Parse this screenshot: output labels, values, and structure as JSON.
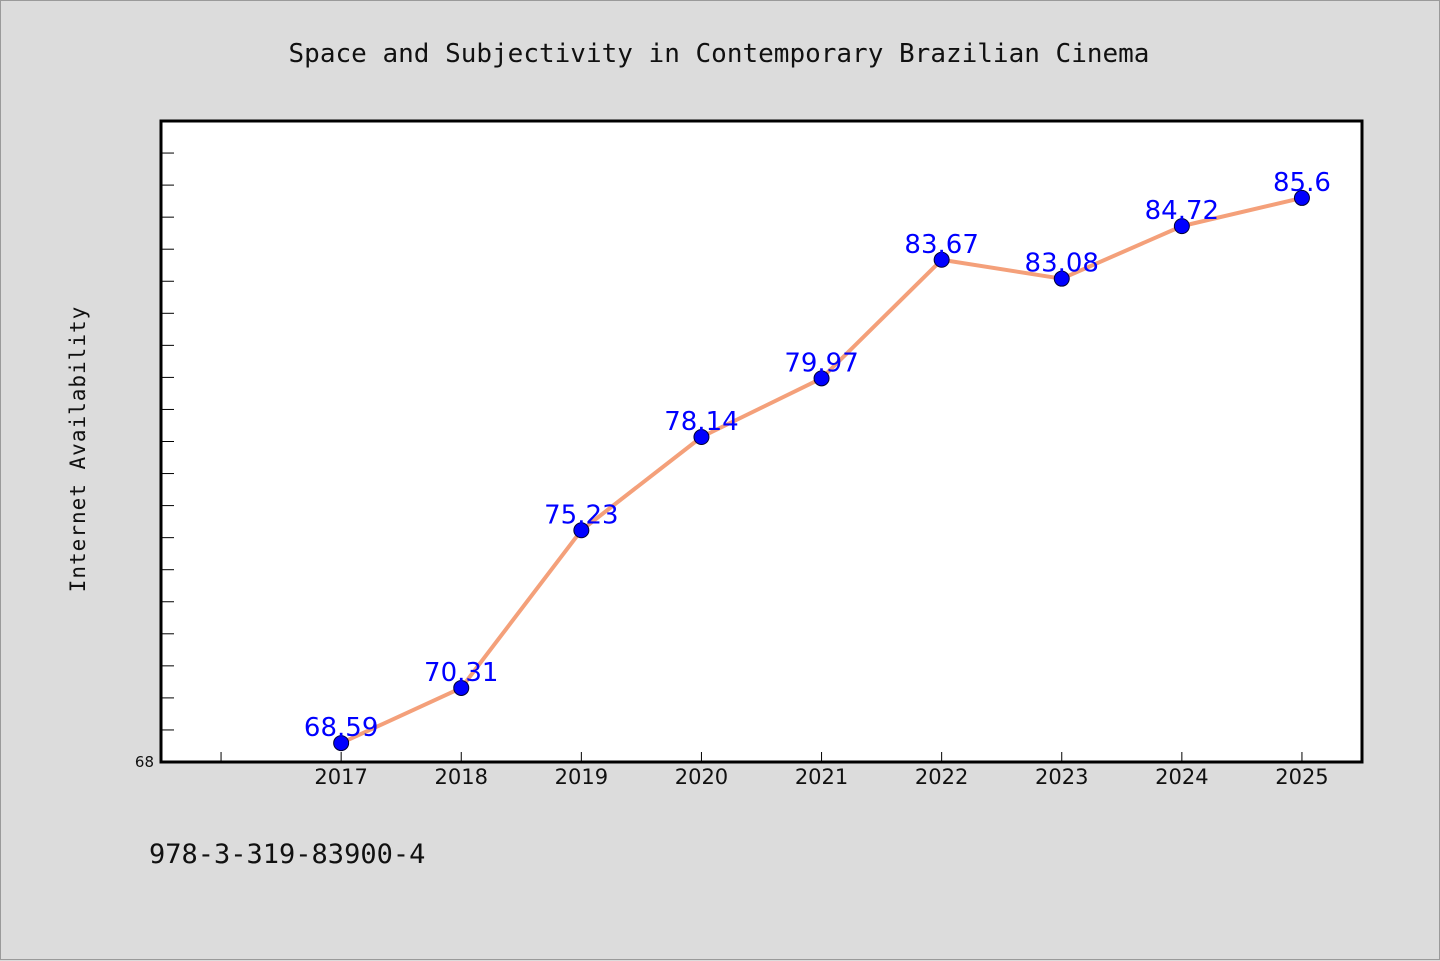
{
  "colors": {
    "background": "#dcdcdc",
    "plot_background": "#ffffff",
    "line": "#f4a07a",
    "marker": "#0000ff",
    "data_label": "#0000ff",
    "axis": "#000000"
  },
  "footer": {
    "isbn": "978-3-319-83900-4"
  },
  "chart_data": {
    "type": "line",
    "title": "Space and Subjectivity in Contemporary Brazilian Cinema",
    "xlabel": "",
    "ylabel": "Internet Availability",
    "categories": [
      "2017",
      "2018",
      "2019",
      "2020",
      "2021",
      "2022",
      "2023",
      "2024",
      "2025"
    ],
    "series": [
      {
        "values": [
          68.59,
          70.31,
          75.23,
          78.14,
          79.97,
          83.67,
          83.08,
          84.72,
          85.6
        ],
        "labels": [
          "68.59",
          "70.31",
          "75.23",
          "78.14",
          "79.97",
          "83.67",
          "83.08",
          "84.72",
          "85.6"
        ]
      }
    ],
    "y_tick_labels": [
      "68"
    ],
    "ylim": [
      68,
      88
    ],
    "x_range": [
      2015.5,
      2025.5
    ],
    "minor_y_tick_step": 1,
    "grid": false,
    "legend": "none"
  }
}
